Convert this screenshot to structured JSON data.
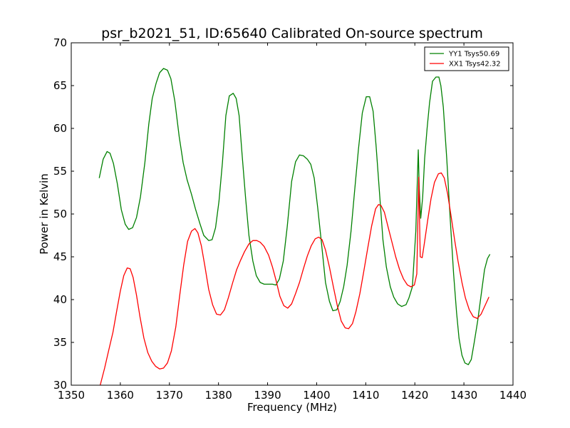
{
  "chart_data": {
    "type": "line",
    "title": "psr_b2021_51, ID:65640 Calibrated On-source spectrum",
    "xlabel": "Frequency (MHz)",
    "ylabel": "Power in Kelvin",
    "xlim": [
      1350,
      1440
    ],
    "ylim": [
      30,
      70
    ],
    "xticks": [
      "1350",
      "1360",
      "1370",
      "1380",
      "1390",
      "1400",
      "1410",
      "1420",
      "1430",
      "1440"
    ],
    "yticks": [
      "30",
      "35",
      "40",
      "45",
      "50",
      "55",
      "60",
      "65",
      "70"
    ],
    "legend_position": "top-right",
    "grid": false,
    "series": [
      {
        "name": "YY1 Tsys50.69",
        "color": "#008000",
        "x": [
          1355.7,
          1356.5,
          1357.3,
          1357.9,
          1358.6,
          1359.4,
          1360.2,
          1361.0,
          1361.7,
          1362.5,
          1363.3,
          1364.1,
          1365.0,
          1365.8,
          1366.5,
          1367.3,
          1368.0,
          1368.8,
          1369.6,
          1370.3,
          1371.1,
          1372.0,
          1372.8,
          1373.6,
          1374.5,
          1375.3,
          1376.2,
          1377.0,
          1378.0,
          1378.7,
          1379.4,
          1380.1,
          1380.8,
          1381.5,
          1382.2,
          1383.0,
          1383.6,
          1384.2,
          1384.8,
          1385.5,
          1386.2,
          1387.0,
          1387.7,
          1388.5,
          1389.3,
          1390.1,
          1391.0,
          1391.7,
          1392.4,
          1393.2,
          1394.0,
          1394.9,
          1395.7,
          1396.5,
          1397.3,
          1398.1,
          1398.8,
          1399.5,
          1400.2,
          1401.0,
          1401.8,
          1402.6,
          1403.3,
          1404.1,
          1404.8,
          1405.5,
          1406.2,
          1407.0,
          1407.7,
          1408.5,
          1409.3,
          1410.1,
          1410.8,
          1411.5,
          1412.1,
          1412.8,
          1413.5,
          1414.2,
          1415.0,
          1415.7,
          1416.5,
          1417.3,
          1418.2,
          1418.8,
          1419.5,
          1420.2,
          1420.7,
          1420.9,
          1421.2,
          1421.6,
          1422.0,
          1422.5,
          1423.0,
          1423.6,
          1424.3,
          1424.9,
          1425.3,
          1425.8,
          1426.5,
          1427.2,
          1427.9,
          1428.5,
          1429.0,
          1429.6,
          1430.2,
          1430.9,
          1431.5,
          1432.1,
          1432.8,
          1433.5,
          1434.2,
          1434.8,
          1435.3
        ],
        "y": [
          54.2,
          56.4,
          57.3,
          57.1,
          55.9,
          53.5,
          50.5,
          48.8,
          48.2,
          48.4,
          49.6,
          52.0,
          56.0,
          60.5,
          63.5,
          65.3,
          66.5,
          67.0,
          66.8,
          65.8,
          63.2,
          59.0,
          56.0,
          54.0,
          52.3,
          50.6,
          48.9,
          47.5,
          46.9,
          47.0,
          48.4,
          51.5,
          56.0,
          61.5,
          63.8,
          64.1,
          63.5,
          61.5,
          57.0,
          52.0,
          47.5,
          44.5,
          42.8,
          42.0,
          41.8,
          41.8,
          41.8,
          41.7,
          42.4,
          44.5,
          48.5,
          53.8,
          56.1,
          56.9,
          56.8,
          56.4,
          55.8,
          54.2,
          50.8,
          46.5,
          42.0,
          39.8,
          38.7,
          38.8,
          39.8,
          41.5,
          44.0,
          48.0,
          52.5,
          57.5,
          61.8,
          63.7,
          63.7,
          62.0,
          58.0,
          52.5,
          47.0,
          43.8,
          41.5,
          40.3,
          39.5,
          39.2,
          39.4,
          40.2,
          41.5,
          48.0,
          57.5,
          53.0,
          49.5,
          52.0,
          56.5,
          60.0,
          63.0,
          65.5,
          66.0,
          66.0,
          65.0,
          62.5,
          56.5,
          49.5,
          43.0,
          38.5,
          35.5,
          33.5,
          32.6,
          32.4,
          33.0,
          35.0,
          37.5,
          40.5,
          43.5,
          44.8,
          45.3
        ]
      },
      {
        "name": "XX1 Tsys42.32",
        "color": "#ff0000",
        "x": [
          1355.9,
          1356.8,
          1357.6,
          1358.5,
          1359.3,
          1360.0,
          1360.7,
          1361.4,
          1362.0,
          1362.6,
          1363.3,
          1364.0,
          1364.8,
          1365.6,
          1366.4,
          1367.2,
          1368.0,
          1368.8,
          1369.6,
          1370.4,
          1371.3,
          1372.1,
          1372.9,
          1373.7,
          1374.5,
          1375.2,
          1375.8,
          1376.5,
          1377.2,
          1378.0,
          1378.8,
          1379.6,
          1380.4,
          1381.2,
          1382.0,
          1382.9,
          1383.7,
          1384.5,
          1385.3,
          1386.2,
          1387.0,
          1387.8,
          1388.5,
          1389.3,
          1390.2,
          1391.0,
          1391.7,
          1392.5,
          1393.3,
          1394.1,
          1394.9,
          1395.7,
          1396.5,
          1397.3,
          1398.1,
          1398.9,
          1399.7,
          1400.4,
          1401.1,
          1401.8,
          1402.6,
          1403.4,
          1404.2,
          1405.0,
          1405.8,
          1406.5,
          1407.3,
          1408.0,
          1408.8,
          1409.6,
          1410.4,
          1411.2,
          1412.0,
          1412.6,
          1413.1,
          1413.8,
          1414.5,
          1415.3,
          1416.1,
          1416.9,
          1417.7,
          1418.5,
          1419.2,
          1419.9,
          1420.4,
          1420.8,
          1421.1,
          1421.5,
          1422.0,
          1422.6,
          1423.3,
          1424.0,
          1424.8,
          1425.4,
          1426.0,
          1426.7,
          1427.4,
          1428.1,
          1428.8,
          1429.6,
          1430.3,
          1431.1,
          1431.9,
          1432.7,
          1433.5,
          1434.3,
          1435.1
        ],
        "y": [
          30.0,
          32.0,
          34.0,
          36.2,
          38.8,
          41.0,
          42.8,
          43.7,
          43.6,
          42.6,
          40.5,
          38.0,
          35.5,
          33.8,
          32.8,
          32.2,
          31.9,
          32.0,
          32.6,
          34.0,
          36.8,
          40.5,
          44.0,
          46.8,
          48.0,
          48.3,
          47.8,
          46.3,
          44.0,
          41.2,
          39.4,
          38.3,
          38.2,
          38.8,
          40.2,
          42.0,
          43.5,
          44.6,
          45.6,
          46.5,
          46.9,
          46.9,
          46.7,
          46.2,
          45.2,
          43.8,
          42.3,
          40.4,
          39.3,
          39.0,
          39.5,
          40.7,
          42.0,
          43.6,
          45.1,
          46.3,
          47.1,
          47.3,
          47.0,
          45.8,
          43.8,
          41.5,
          39.3,
          37.5,
          36.7,
          36.6,
          37.2,
          38.6,
          40.7,
          43.3,
          46.0,
          48.6,
          50.6,
          51.1,
          51.0,
          50.2,
          48.6,
          46.8,
          45.0,
          43.5,
          42.4,
          41.7,
          41.5,
          41.7,
          43.0,
          54.3,
          45.0,
          44.9,
          46.8,
          49.2,
          51.8,
          53.7,
          54.7,
          54.8,
          54.2,
          52.3,
          49.7,
          47.0,
          44.5,
          42.0,
          40.2,
          38.8,
          38.0,
          37.8,
          38.3,
          39.3,
          40.3
        ]
      }
    ]
  }
}
